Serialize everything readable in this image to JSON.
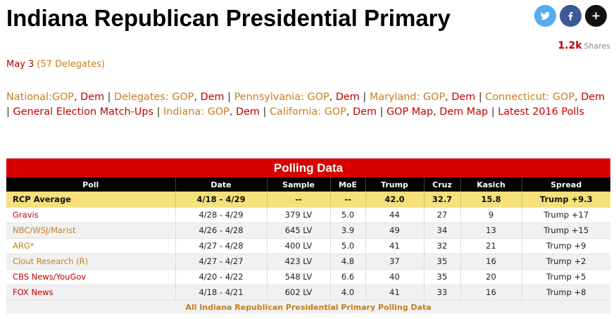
{
  "page": {
    "title": "Indiana Republican Presidential Primary",
    "date": "May 3",
    "delegates": "(57 Delegates)"
  },
  "share": {
    "count": "1.2k",
    "label": "Shares",
    "icons": [
      "twitter-icon",
      "facebook-icon",
      "plus-icon"
    ],
    "colors": {
      "twitter": "#55acee",
      "facebook": "#3b5998",
      "more": "#111111"
    }
  },
  "nav": [
    {
      "text": "National:",
      "color": "orange",
      "sep": ""
    },
    {
      "text": "GOP",
      "color": "orange",
      "sep": ", "
    },
    {
      "text": "Dem",
      "color": "red",
      "sep": " | "
    },
    {
      "text": "Delegates:",
      "color": "orange",
      "sep": " "
    },
    {
      "text": "GOP",
      "color": "orange",
      "sep": ", "
    },
    {
      "text": "Dem",
      "color": "red",
      "sep": " | "
    },
    {
      "text": "Pennsylvania:",
      "color": "orange",
      "sep": " "
    },
    {
      "text": "GOP",
      "color": "orange",
      "sep": ", "
    },
    {
      "text": "Dem",
      "color": "red",
      "sep": " | "
    },
    {
      "text": "Maryland:",
      "color": "orange",
      "sep": " "
    },
    {
      "text": "GOP",
      "color": "orange",
      "sep": ", "
    },
    {
      "text": "Dem",
      "color": "red",
      "sep": " | "
    },
    {
      "text": "Connecticut:",
      "color": "orange",
      "sep": " "
    },
    {
      "text": "GOP",
      "color": "orange",
      "sep": ", "
    },
    {
      "text": "Dem",
      "color": "red",
      "sep": " | "
    },
    {
      "text": "General Election Match-Ups",
      "color": "red",
      "sep": " | "
    },
    {
      "text": "Indiana:",
      "color": "orange",
      "sep": " "
    },
    {
      "text": "GOP",
      "color": "orange",
      "sep": ", "
    },
    {
      "text": "Dem",
      "color": "red",
      "sep": " | "
    },
    {
      "text": "California:",
      "color": "orange",
      "sep": " "
    },
    {
      "text": "GOP",
      "color": "orange",
      "sep": ", "
    },
    {
      "text": "Dem",
      "color": "red",
      "sep": " | "
    },
    {
      "text": "GOP Map",
      "color": "red",
      "sep": ", "
    },
    {
      "text": "Dem Map",
      "color": "red",
      "sep": " | "
    },
    {
      "text": "Latest 2016 Polls",
      "color": "red",
      "sep": ""
    }
  ],
  "polls": {
    "header": "Polling Data",
    "columns": [
      "Poll",
      "Date",
      "Sample",
      "MoE",
      "Trump",
      "Cruz",
      "Kasich",
      "Spread"
    ],
    "average": {
      "poll": "RCP Average",
      "date": "4/18 - 4/29",
      "sample": "--",
      "moe": "--",
      "trump": "42.0",
      "cruz": "32.7",
      "kasich": "15.8",
      "spread": "Trump +9.3"
    },
    "rows": [
      {
        "poll": "Gravis",
        "link_color": "red",
        "date": "4/28 - 4/29",
        "sample": "379 LV",
        "moe": "5.0",
        "trump": "44",
        "cruz": "27",
        "kasich": "9",
        "spread": "Trump +17"
      },
      {
        "poll": "NBC/WSJ/Marist",
        "link_color": "orange",
        "date": "4/26 - 4/28",
        "sample": "645 LV",
        "moe": "3.9",
        "trump": "49",
        "cruz": "34",
        "kasich": "13",
        "spread": "Trump +15"
      },
      {
        "poll": "ARG*",
        "link_color": "orange",
        "date": "4/27 - 4/28",
        "sample": "400 LV",
        "moe": "5.0",
        "trump": "41",
        "cruz": "32",
        "kasich": "21",
        "spread": "Trump +9"
      },
      {
        "poll": "Clout Research (R)",
        "link_color": "orange",
        "date": "4/27 - 4/27",
        "sample": "423 LV",
        "moe": "4.8",
        "trump": "37",
        "cruz": "35",
        "kasich": "16",
        "spread": "Trump +2"
      },
      {
        "poll": "CBS News/YouGov",
        "link_color": "red",
        "date": "4/20 - 4/22",
        "sample": "548 LV",
        "moe": "6.6",
        "trump": "40",
        "cruz": "35",
        "kasich": "20",
        "spread": "Trump +5"
      },
      {
        "poll": "FOX News",
        "link_color": "red",
        "date": "4/18 - 4/21",
        "sample": "602 LV",
        "moe": "4.0",
        "trump": "41",
        "cruz": "33",
        "kasich": "16",
        "spread": "Trump +8"
      }
    ],
    "footer_link": "All Indiana Republican Presidential Primary Polling Data"
  }
}
